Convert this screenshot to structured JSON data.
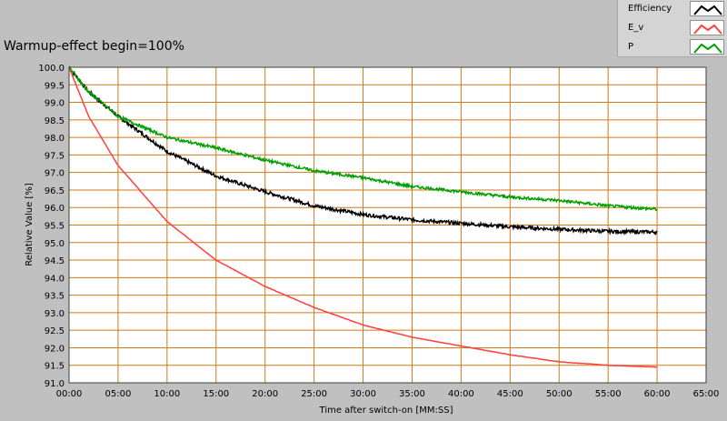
{
  "chart_data": {
    "type": "line",
    "title": "Warmup-effect begin=100%",
    "xlabel": "Time after switch-on [MM:SS]",
    "ylabel": "Relative Value [%]",
    "xlim": [
      0,
      65
    ],
    "ylim": [
      91.0,
      100.0
    ],
    "x_ticks": [
      "00:00",
      "05:00",
      "10:00",
      "15:00",
      "20:00",
      "25:00",
      "30:00",
      "35:00",
      "40:00",
      "45:00",
      "50:00",
      "55:00",
      "60:00",
      "65:00"
    ],
    "y_ticks": [
      "100.0",
      "99.5",
      "99.0",
      "98.5",
      "98.0",
      "97.5",
      "97.0",
      "96.5",
      "96.0",
      "95.5",
      "95.0",
      "94.5",
      "94.0",
      "93.5",
      "93.0",
      "92.5",
      "92.0",
      "91.5",
      "91.0"
    ],
    "grid": true,
    "legend_position": "top-right",
    "x_unit": "minutes",
    "series": [
      {
        "name": "Efficiency",
        "color": "#000000",
        "x": [
          0,
          2,
          5,
          10,
          15,
          20,
          25,
          30,
          35,
          40,
          45,
          50,
          55,
          60
        ],
        "values": [
          100.0,
          99.3,
          98.6,
          97.6,
          96.9,
          96.45,
          96.05,
          95.8,
          95.65,
          95.55,
          95.45,
          95.38,
          95.32,
          95.3
        ]
      },
      {
        "name": "E_v",
        "color": "#ff4040",
        "x": [
          0,
          2,
          5,
          10,
          15,
          20,
          25,
          30,
          35,
          40,
          45,
          50,
          55,
          60
        ],
        "values": [
          100.0,
          98.6,
          97.2,
          95.6,
          94.5,
          93.75,
          93.15,
          92.65,
          92.3,
          92.05,
          91.8,
          91.6,
          91.5,
          91.45
        ]
      },
      {
        "name": "P",
        "color": "#00a000",
        "x": [
          0,
          2,
          5,
          10,
          15,
          20,
          25,
          30,
          35,
          40,
          45,
          50,
          55,
          60
        ],
        "values": [
          100.0,
          99.3,
          98.6,
          98.0,
          97.7,
          97.35,
          97.05,
          96.85,
          96.6,
          96.45,
          96.3,
          96.2,
          96.05,
          95.95
        ]
      }
    ]
  }
}
